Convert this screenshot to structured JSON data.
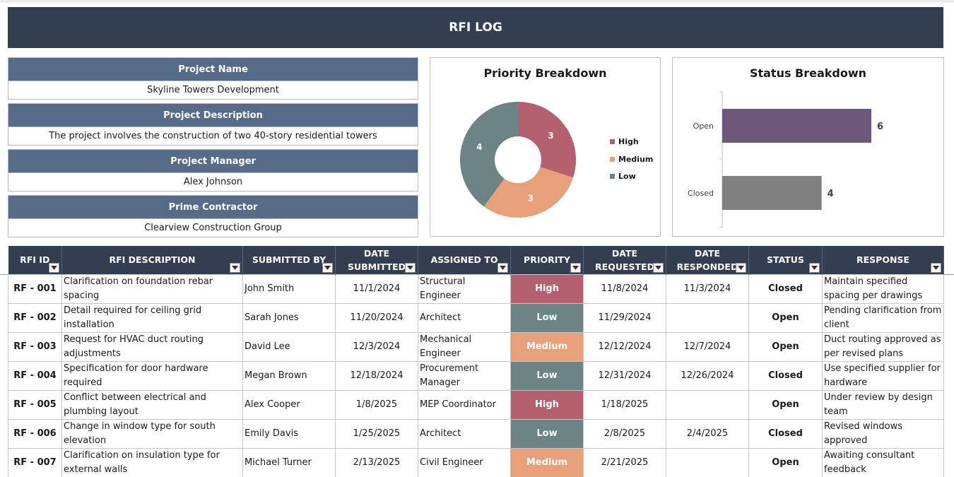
{
  "title": "RFI LOG",
  "top_mark": "\"",
  "project": [
    {
      "label": "Project Name",
      "value": "Skyline Towers Development"
    },
    {
      "label": "Project Description",
      "value": "The project involves the construction of two 40-story residential towers"
    },
    {
      "label": "Project Manager",
      "value": "Alex Johnson"
    },
    {
      "label": "Prime Contractor",
      "value": "Clearview Construction Group"
    }
  ],
  "colors": {
    "header": "#333e50",
    "label": "#566b87",
    "high": "#b5606f",
    "medium": "#e8a07a",
    "low": "#6c8486",
    "open_bar": "#6e587a",
    "closed_bar": "#808080"
  },
  "chart_data": [
    {
      "type": "pie",
      "title": "Priority Breakdown",
      "donut": true,
      "categories": [
        "High",
        "Medium",
        "Low"
      ],
      "values": [
        3,
        3,
        4
      ],
      "colors": [
        "#b5606f",
        "#e8a07a",
        "#6c8486"
      ],
      "legend": "right"
    },
    {
      "type": "bar",
      "orientation": "horizontal",
      "title": "Status Breakdown",
      "categories": [
        "Open",
        "Closed"
      ],
      "values": [
        6,
        4
      ],
      "colors": [
        "#6e587a",
        "#808080"
      ]
    }
  ],
  "table": {
    "columns": [
      {
        "label": "RFI ID",
        "filter": "filter-rfi-id-button"
      },
      {
        "label": "RFI DESCRIPTION",
        "filter": "filter-rfi-description-button"
      },
      {
        "label": "SUBMITTED BY",
        "filter": "filter-submitted-by-button"
      },
      {
        "label": "DATE SUBMITTED",
        "filter": "filter-date-submitted-button"
      },
      {
        "label": "ASSIGNED TO",
        "filter": "filter-assigned-to-button"
      },
      {
        "label": "PRIORITY",
        "filter": "filter-priority-button"
      },
      {
        "label": "DATE REQUESTED",
        "filter": "filter-date-requested-button"
      },
      {
        "label": "DATE RESPONDED",
        "filter": "filter-date-responded-button"
      },
      {
        "label": "STATUS",
        "filter": "filter-status-button"
      },
      {
        "label": "RESPONSE",
        "filter": "filter-response-button"
      }
    ],
    "rows": [
      {
        "id": "RF - 001",
        "description": "Clarification on foundation rebar spacing",
        "submitted_by": "John Smith",
        "date_submitted": "11/1/2024",
        "assigned_to": "Structural Engineer",
        "priority": "High",
        "date_requested": "11/8/2024",
        "date_responded": "11/3/2024",
        "status": "Closed",
        "response": "Maintain specified spacing per drawings"
      },
      {
        "id": "RF - 002",
        "description": "Detail required for ceiling grid installation",
        "submitted_by": "Sarah Jones",
        "date_submitted": "11/20/2024",
        "assigned_to": "Architect",
        "priority": "Low",
        "date_requested": "11/29/2024",
        "date_responded": "",
        "status": "Open",
        "response": "Pending clarification from client"
      },
      {
        "id": "RF - 003",
        "description": "Request for HVAC duct routing adjustments",
        "submitted_by": "David Lee",
        "date_submitted": "12/3/2024",
        "assigned_to": "Mechanical Engineer",
        "priority": "Medium",
        "date_requested": "12/12/2024",
        "date_responded": "12/7/2024",
        "status": "Open",
        "response": "Duct routing approved as per revised plans"
      },
      {
        "id": "RF - 004",
        "description": "Specification for door hardware required",
        "submitted_by": "Megan Brown",
        "date_submitted": "12/18/2024",
        "assigned_to": "Procurement Manager",
        "priority": "Low",
        "date_requested": "12/31/2024",
        "date_responded": "12/26/2024",
        "status": "Closed",
        "response": "Use specified supplier for hardware"
      },
      {
        "id": "RF - 005",
        "description": "Conflict between electrical and plumbing layout",
        "submitted_by": "Alex Cooper",
        "date_submitted": "1/8/2025",
        "assigned_to": "MEP Coordinator",
        "priority": "High",
        "date_requested": "1/18/2025",
        "date_responded": "",
        "status": "Open",
        "response": "Under review by design team"
      },
      {
        "id": "RF - 006",
        "description": "Change in window type for south elevation",
        "submitted_by": "Emily Davis",
        "date_submitted": "1/25/2025",
        "assigned_to": "Architect",
        "priority": "Low",
        "date_requested": "2/8/2025",
        "date_responded": "2/4/2025",
        "status": "Closed",
        "response": "Revised windows approved"
      },
      {
        "id": "RF - 007",
        "description": "Clarification on insulation type for external walls",
        "submitted_by": "Michael Turner",
        "date_submitted": "2/13/2025",
        "assigned_to": "Civil Engineer",
        "priority": "Medium",
        "date_requested": "2/21/2025",
        "date_responded": "",
        "status": "Open",
        "response": "Awaiting consultant feedback"
      }
    ]
  }
}
